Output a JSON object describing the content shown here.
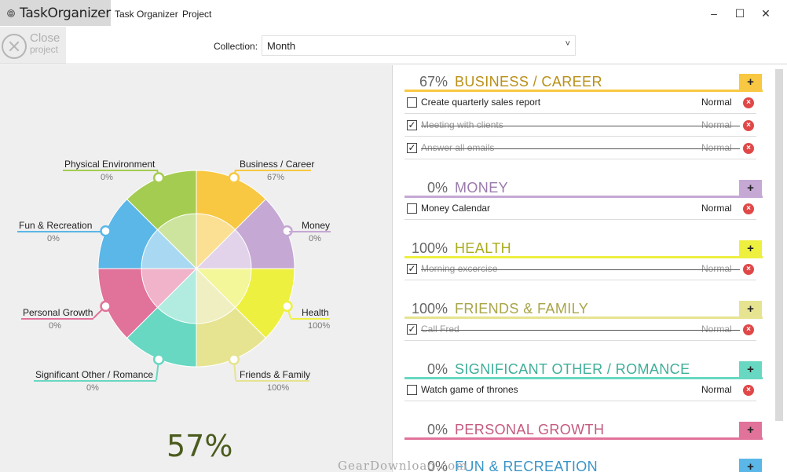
{
  "app": {
    "name": "TaskOrganizer",
    "menu": [
      "Task Organizer",
      "Project"
    ],
    "window_controls": [
      "–",
      "☐",
      "✕"
    ]
  },
  "toolbar": {
    "close_label": "Close",
    "close_sub": "project",
    "collection_label": "Collection:",
    "collection_value": "Month",
    "collection_chevron": "˅"
  },
  "wheel": {
    "overall_percent": "57%",
    "categories": [
      {
        "name": "Business / Career",
        "percent": "67%",
        "color": "#f8c842",
        "inner": "#fbe093",
        "fraction": 0.67
      },
      {
        "name": "Money",
        "percent": "0%",
        "color": "#c5a8d4",
        "inner": "#e2d3ea",
        "fraction": 0
      },
      {
        "name": "Health",
        "percent": "100%",
        "color": "#eef040",
        "inner": "#f4f69a",
        "fraction": 1
      },
      {
        "name": "Friends & Family",
        "percent": "100%",
        "color": "#e6e491",
        "inner": "#f0efc2",
        "fraction": 1
      },
      {
        "name": "Significant Other / Romance",
        "percent": "0%",
        "color": "#68d8c2",
        "inner": "#b2ece0",
        "fraction": 0
      },
      {
        "name": "Personal Growth",
        "percent": "0%",
        "color": "#e17299",
        "inner": "#f0b3c9",
        "fraction": 0
      },
      {
        "name": "Fun & Recreation",
        "percent": "0%",
        "color": "#5ab7e7",
        "inner": "#a9d9f2",
        "fraction": 0
      },
      {
        "name": "Physical Environment",
        "percent": "0%",
        "color": "#a4cc51",
        "inner": "#cde49f",
        "fraction": 0
      }
    ]
  },
  "groups": [
    {
      "percent": "67%",
      "title": "BUSINESS / CAREER",
      "color": "#f8c842",
      "title_color": "#b98f16",
      "add": "+",
      "tasks": [
        {
          "text": "Create quarterly sales report",
          "priority": "Normal",
          "done": false
        },
        {
          "text": "Meeting with clients",
          "priority": "Normal",
          "done": true
        },
        {
          "text": "Answer all emails",
          "priority": "Normal",
          "done": true
        }
      ]
    },
    {
      "percent": "0%",
      "title": "MONEY",
      "color": "#c5a8d4",
      "title_color": "#9a7aab",
      "add": "+",
      "tasks": [
        {
          "text": "Money Calendar",
          "priority": "Normal",
          "done": false
        }
      ]
    },
    {
      "percent": "100%",
      "title": "HEALTH",
      "color": "#eef040",
      "title_color": "#a9ab1c",
      "add": "+",
      "tasks": [
        {
          "text": "Morning excercise",
          "priority": "Normal",
          "done": true
        }
      ]
    },
    {
      "percent": "100%",
      "title": "FRIENDS & FAMILY",
      "color": "#e6e491",
      "title_color": "#a8a548",
      "add": "+",
      "tasks": [
        {
          "text": "Call Fred",
          "priority": "Normal",
          "done": true
        }
      ]
    },
    {
      "percent": "0%",
      "title": "SIGNIFICANT OTHER / ROMANCE",
      "color": "#68d8c2",
      "title_color": "#3fae99",
      "add": "+",
      "tasks": [
        {
          "text": "Watch game of thrones",
          "priority": "Normal",
          "done": false
        }
      ]
    },
    {
      "percent": "0%",
      "title": "PERSONAL GROWTH",
      "color": "#e17299",
      "title_color": "#c45a80",
      "add": "+",
      "tasks": []
    },
    {
      "percent": "0%",
      "title": "FUN & RECREATION",
      "color": "#5ab7e7",
      "title_color": "#3b95c7",
      "add": "+",
      "tasks": []
    }
  ],
  "icons": {
    "check": "✓",
    "delete": "×"
  },
  "watermark": "GearDownload.com"
}
